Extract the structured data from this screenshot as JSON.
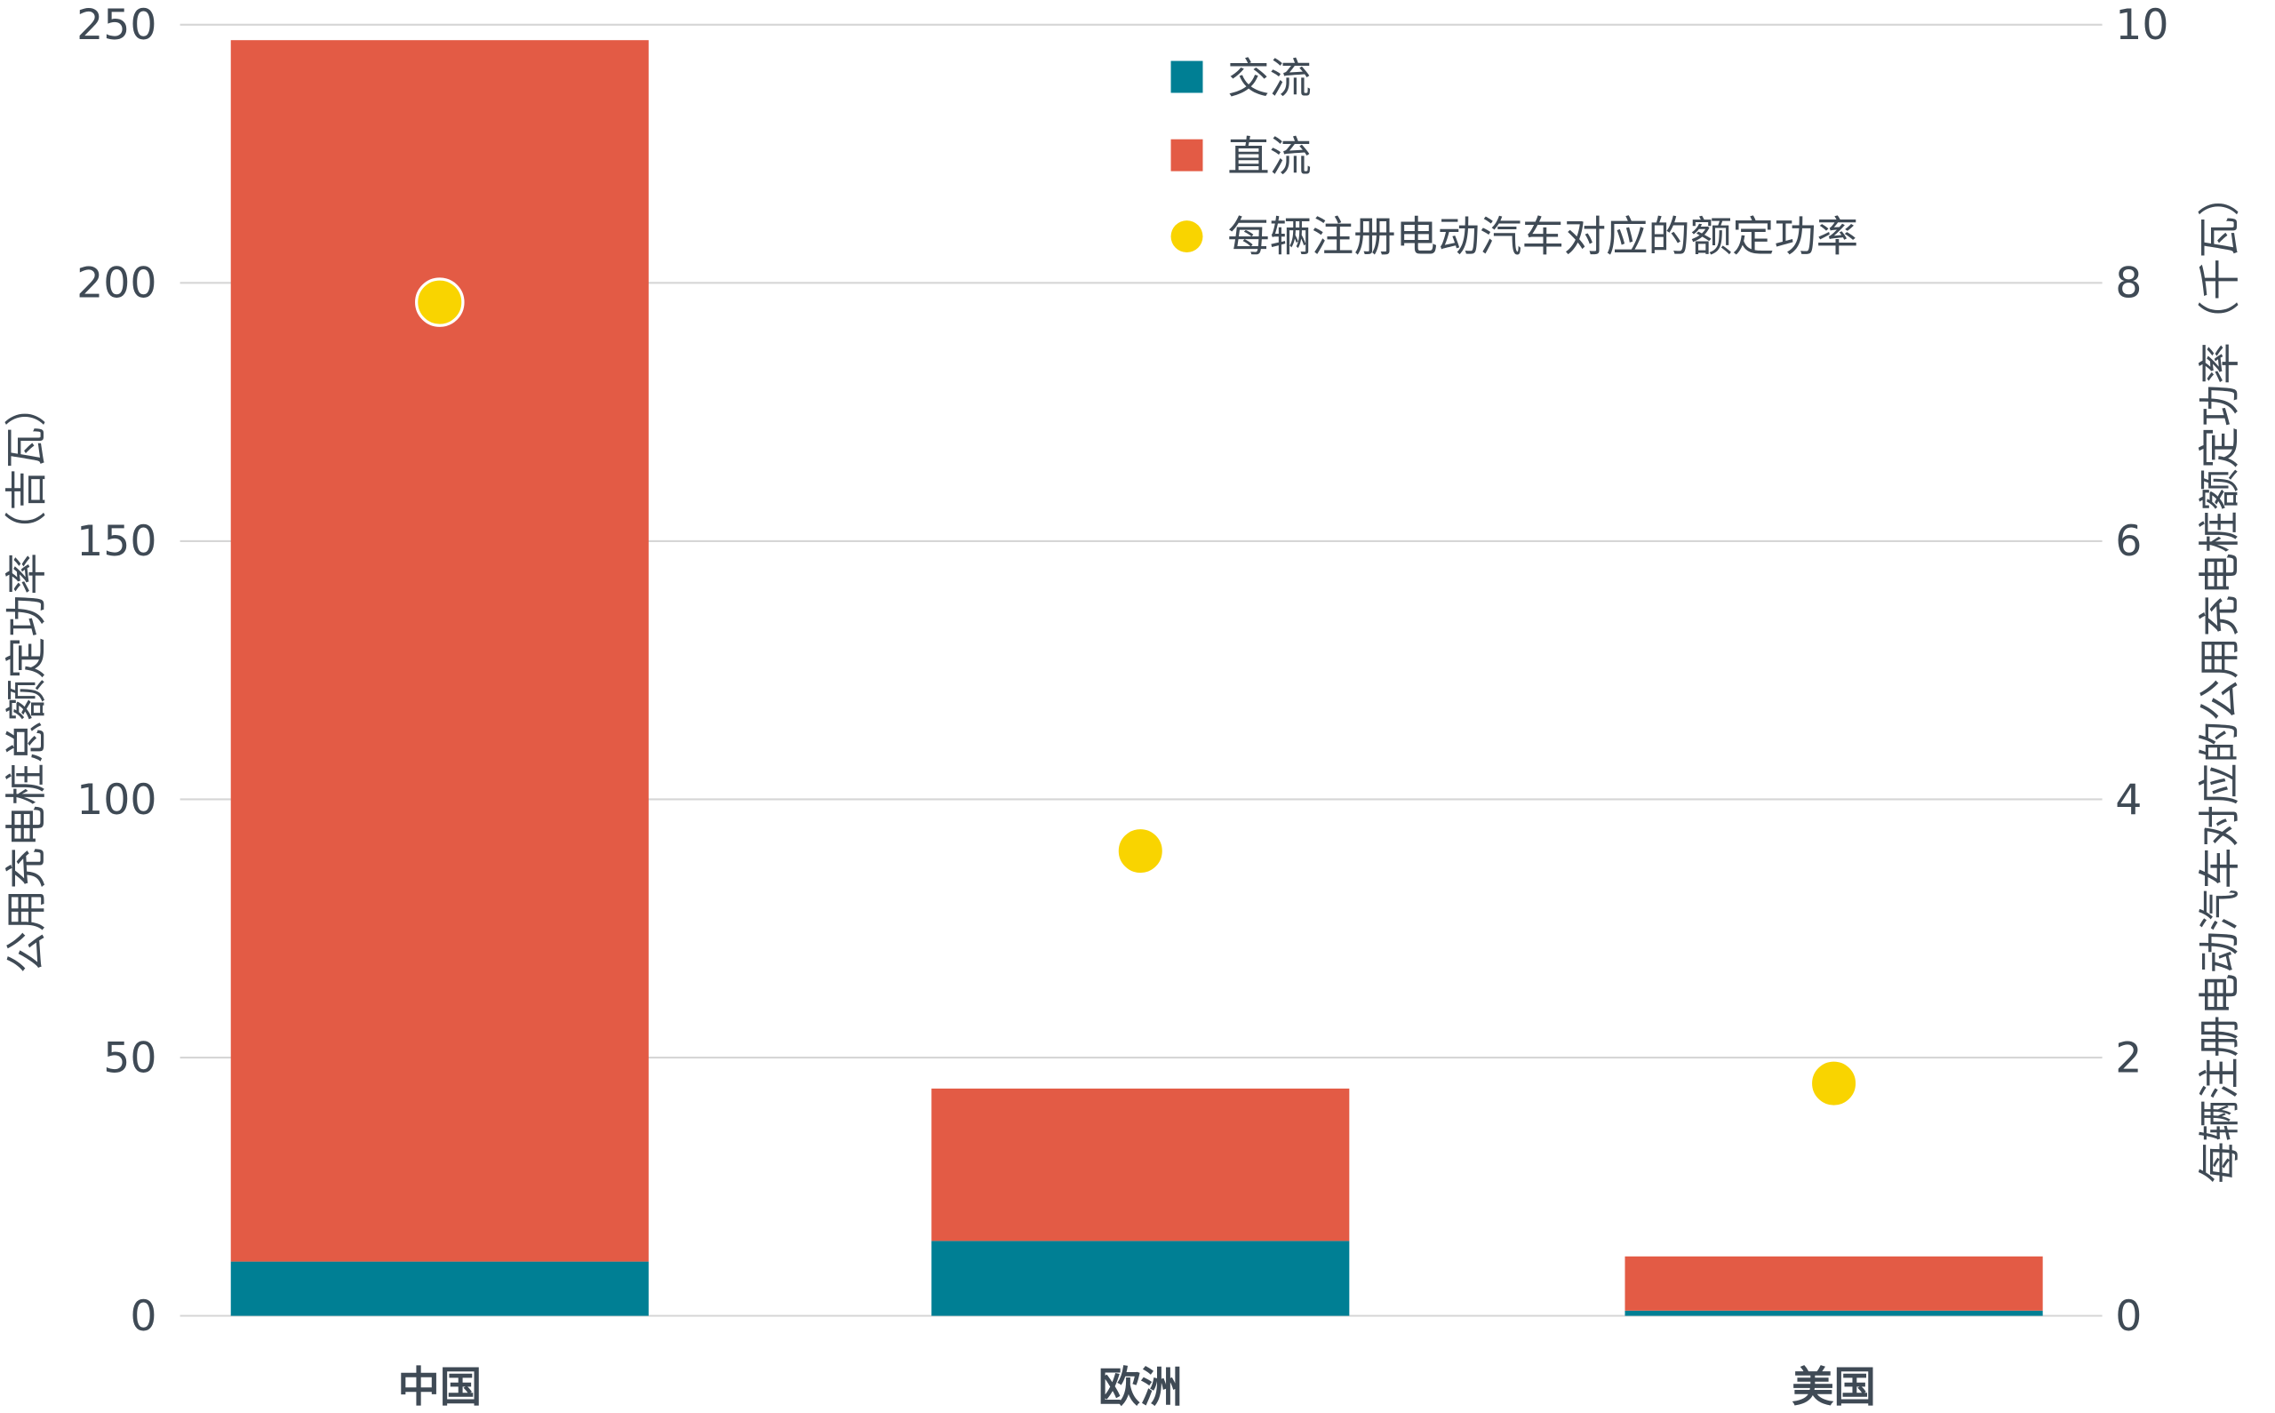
{
  "chart_data": {
    "type": "bar",
    "stacked": true,
    "categories": [
      "中国",
      "欧洲",
      "美国"
    ],
    "series": [
      {
        "name": "交流",
        "axis": "left",
        "kind": "bar",
        "color": "#007f94",
        "values": [
          10.5,
          14.5,
          1.0
        ]
      },
      {
        "name": "直流",
        "axis": "left",
        "kind": "bar",
        "color": "#e35b45",
        "values": [
          236.5,
          29.5,
          10.5
        ]
      },
      {
        "name": "每辆注册电动汽车对应的额定功率",
        "axis": "right",
        "kind": "scatter",
        "color": "#f9d400",
        "values": [
          7.85,
          3.6,
          1.8
        ]
      }
    ],
    "ylabel": "公用充电桩总额定功率（吉瓦）",
    "y2label": "每辆注册电动汽车对应的公用充电桩额定功率（千瓦）",
    "ylim": [
      0,
      250
    ],
    "y2lim": [
      0,
      10
    ],
    "yticks": [
      0,
      50,
      100,
      150,
      200,
      250
    ],
    "y2ticks": [
      0,
      2,
      4,
      6,
      8,
      10
    ],
    "grid": true,
    "legend": "top-center"
  }
}
